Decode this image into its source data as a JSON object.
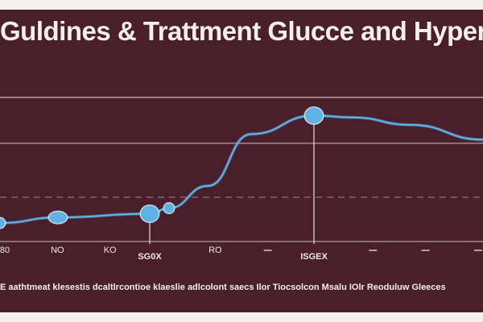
{
  "chart_data": {
    "type": "line",
    "title": "Guldines & Trattment Glucce and Hyperr G",
    "caption": "E aathtmeat klesestis dcaltlrcontioe klaeslie adlcolont saecs Ilor Tiocsolcon Msalu IOlr Reoduluw Gleeces",
    "x_tick_labels": [
      "80",
      "NO",
      "KO",
      "SG0X",
      "RO",
      "",
      "ISGEX",
      "",
      "",
      ""
    ],
    "emphasized_ticks": [
      3,
      6
    ],
    "ylim": [
      0,
      100
    ],
    "grid": true,
    "series": [
      {
        "color": "#5fb2e6",
        "x": [
          0,
          1.2,
          3.1,
          3.5,
          4.3,
          5.2,
          6.5,
          7.3,
          8.5,
          10
        ],
        "values": [
          10,
          13,
          15,
          18,
          30,
          58,
          68,
          67,
          63,
          55
        ]
      }
    ],
    "markers": [
      {
        "x": 0,
        "value": 10
      },
      {
        "x": 1.2,
        "value": 13
      },
      {
        "x": 3.1,
        "value": 15
      },
      {
        "x": 3.5,
        "value": 18
      },
      {
        "x": 6.5,
        "value": 68
      }
    ],
    "drop_lines": [
      3.1,
      6.5
    ]
  }
}
